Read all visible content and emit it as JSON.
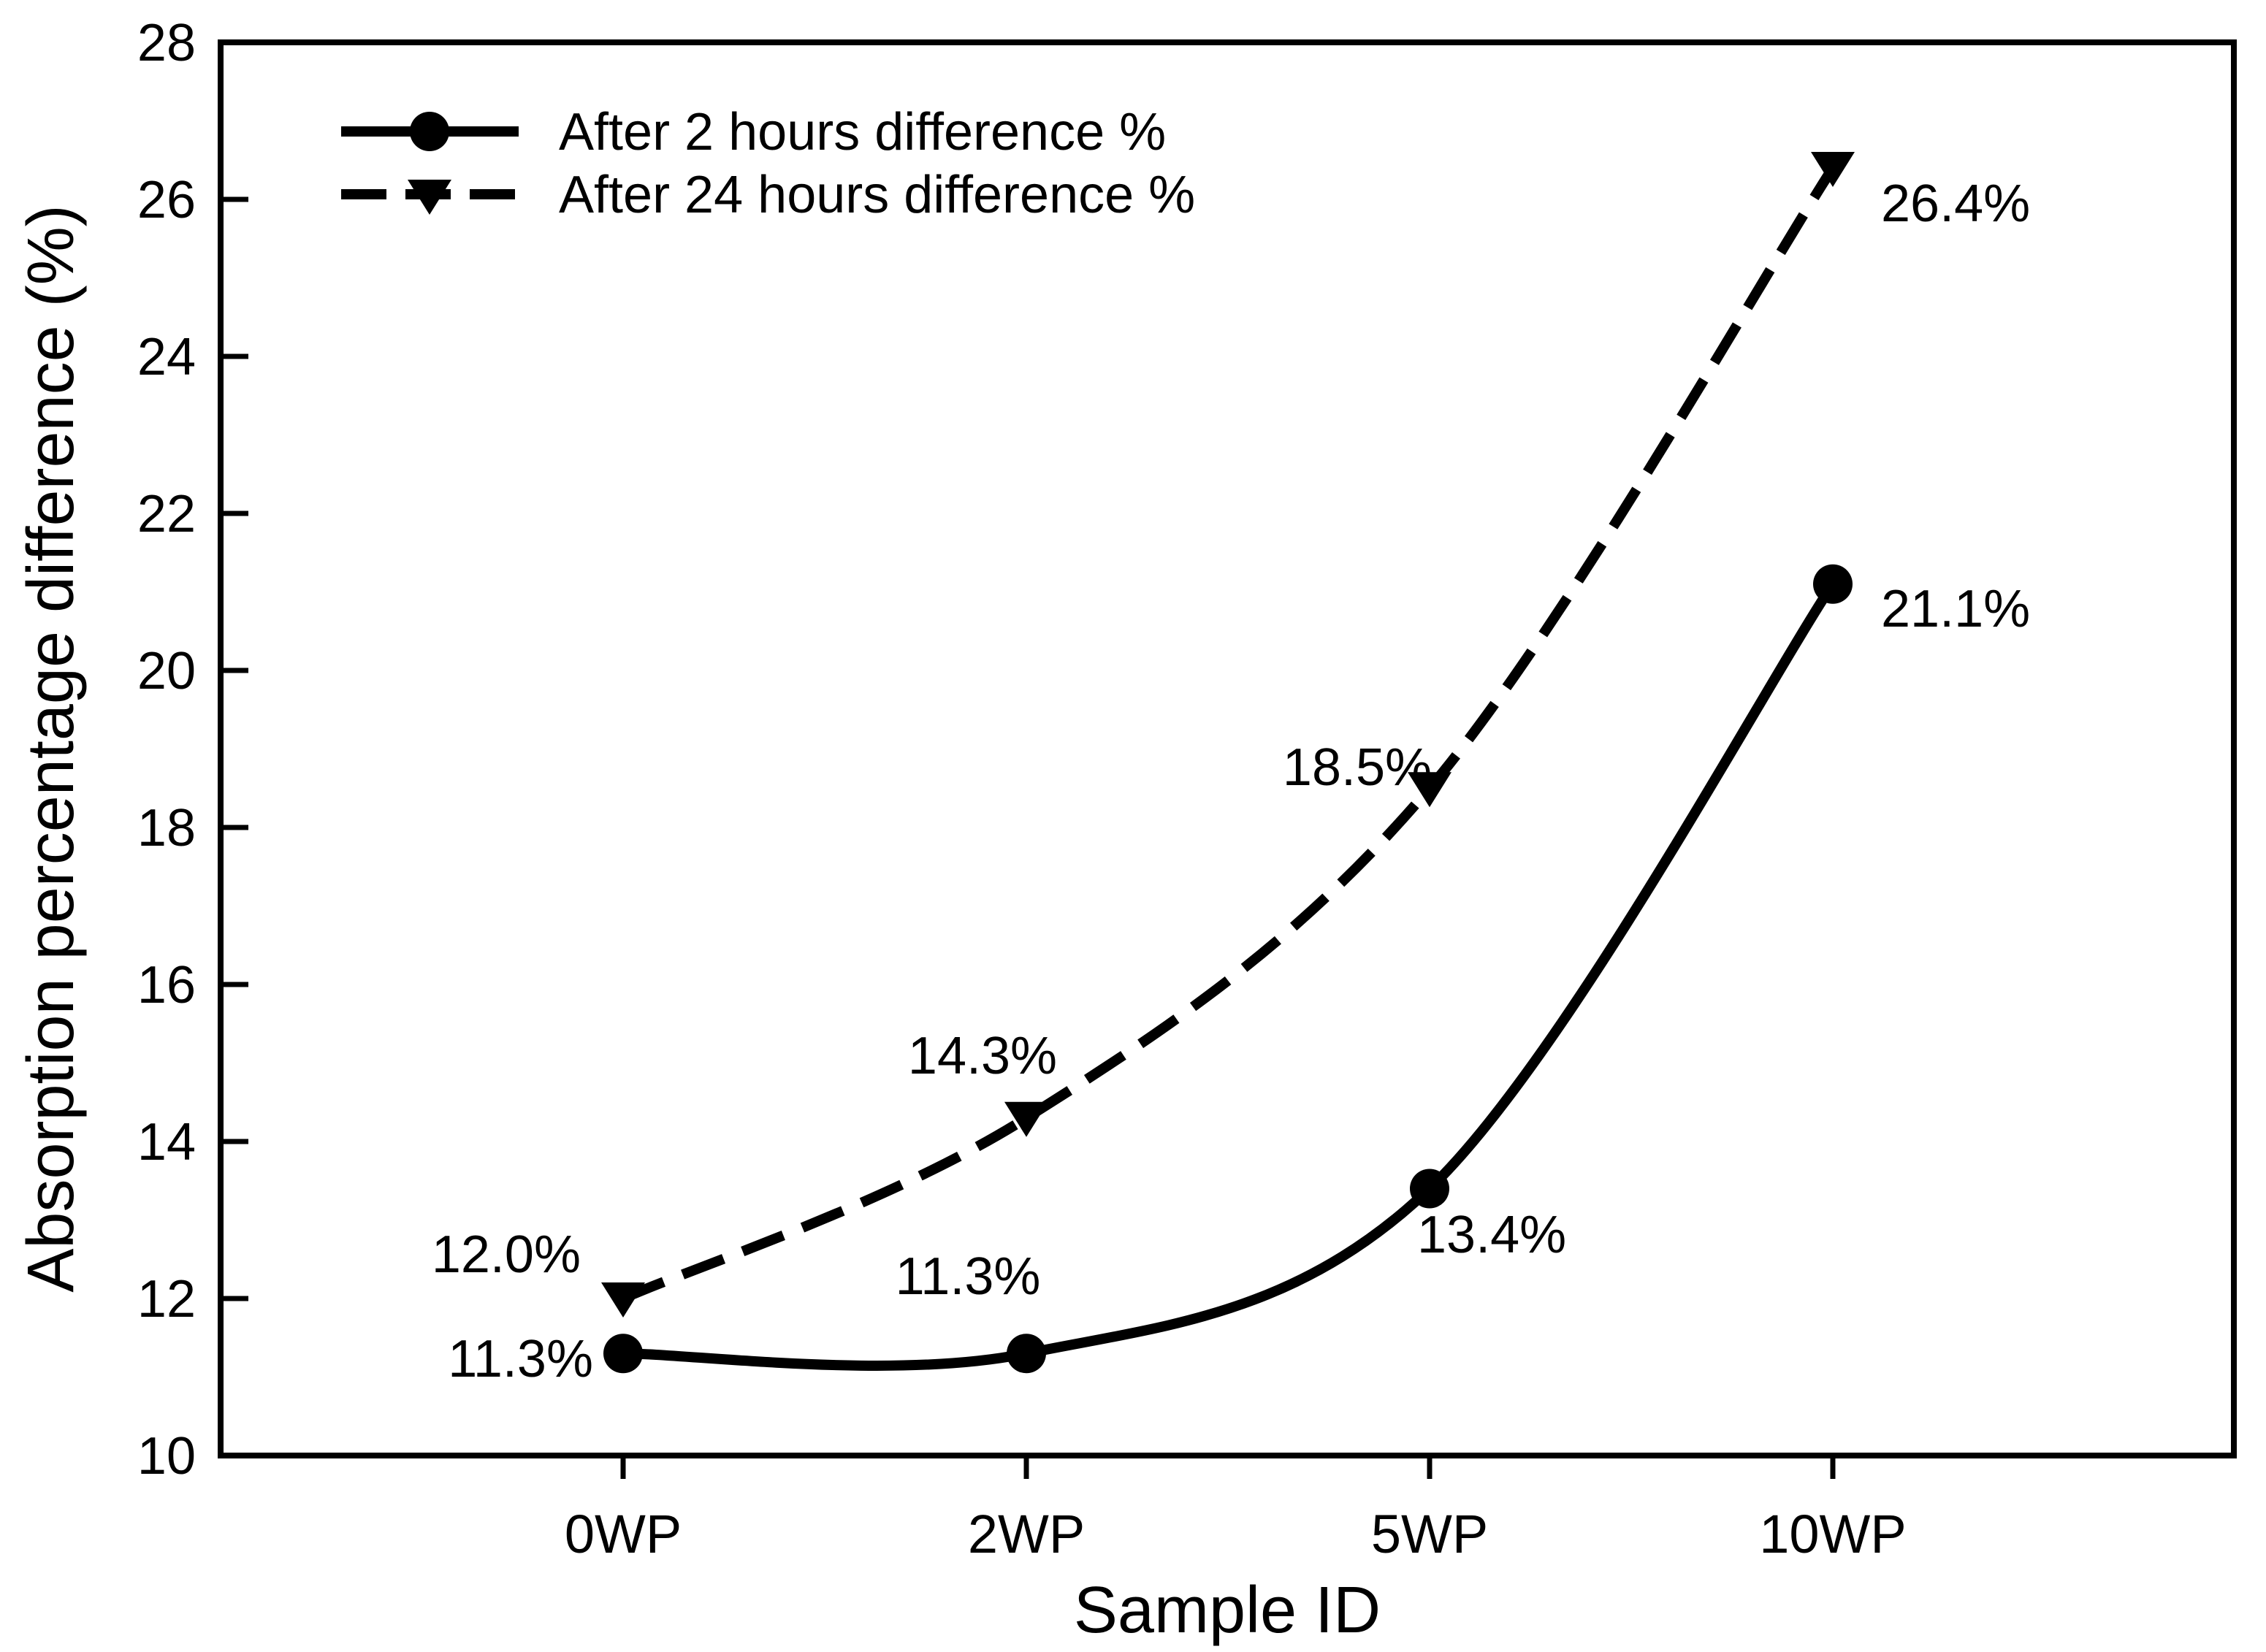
{
  "figure": {
    "background": "#ffffff",
    "ink": "#000000"
  },
  "chart_data": {
    "type": "line",
    "title": "",
    "categories": [
      "0WP",
      "2WP",
      "5WP",
      "10WP"
    ],
    "series": [
      {
        "name": "After 2 hours difference %",
        "marker": "circle",
        "line_style": "solid",
        "values": [
          11.3,
          11.3,
          13.4,
          21.1
        ],
        "point_labels": [
          "11.3%",
          "11.3%",
          "13.4%",
          "21.1%"
        ]
      },
      {
        "name": "After 24 hours difference %",
        "marker": "triangle-down",
        "line_style": "dashed",
        "values": [
          12.0,
          14.3,
          18.5,
          26.4
        ],
        "point_labels": [
          "12.0%",
          "14.3%",
          "18.5%",
          "26.4%"
        ]
      }
    ],
    "xlabel": "Sample ID",
    "ylabel": "Absorption percentage difference (%)",
    "ylim": [
      10,
      28
    ],
    "y_ticks": [
      10,
      12,
      14,
      16,
      18,
      20,
      22,
      24,
      26,
      28
    ],
    "grid": false,
    "legend_position": "top-left-inside",
    "ink_color": "#000000"
  }
}
